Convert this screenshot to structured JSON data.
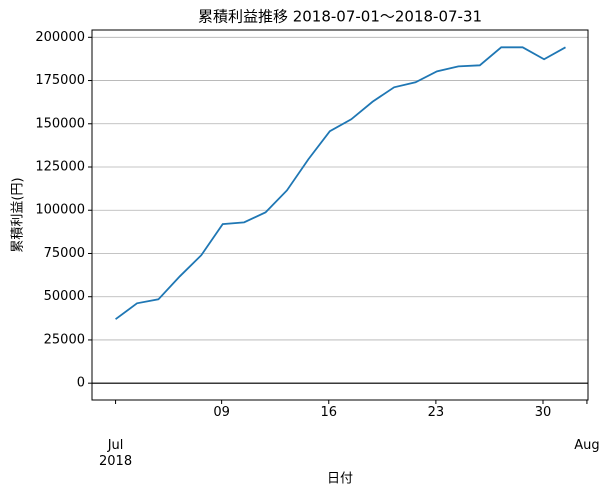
{
  "chart_data": {
    "type": "line",
    "title": "累積利益推移  2018-07-01〜2018-07-31",
    "x_label": "日付",
    "y_label": "累積利益(円)",
    "x": [
      0,
      1,
      2,
      3,
      4,
      5,
      6,
      7,
      8,
      9,
      10,
      11,
      12,
      13,
      14,
      15,
      16,
      17,
      18,
      19,
      20,
      21
    ],
    "series": [
      {
        "name": "累積利益",
        "color": "#1f77b4",
        "values": [
          37000,
          46200,
          48500,
          61800,
          74000,
          92000,
          93000,
          98800,
          111500,
          129500,
          145700,
          152600,
          162800,
          171100,
          174000,
          180300,
          183200,
          183800,
          194200,
          194200,
          187300,
          194200
        ]
      }
    ],
    "xlim": [
      -1.1,
      22.05
    ],
    "xticks": [
      {
        "value": 0,
        "label": "Jul\n2018"
      },
      {
        "value": 4.95,
        "label": "09"
      },
      {
        "value": 9.95,
        "label": "16"
      },
      {
        "value": 14.95,
        "label": "23"
      },
      {
        "value": 19.95,
        "label": "30"
      },
      {
        "value": 22.0,
        "label": "Aug"
      }
    ],
    "ylim": [
      -9725,
      204225
    ],
    "yticks": [
      0,
      25000,
      50000,
      75000,
      100000,
      125000,
      150000,
      175000,
      200000
    ],
    "hline": 0,
    "grid": true
  }
}
